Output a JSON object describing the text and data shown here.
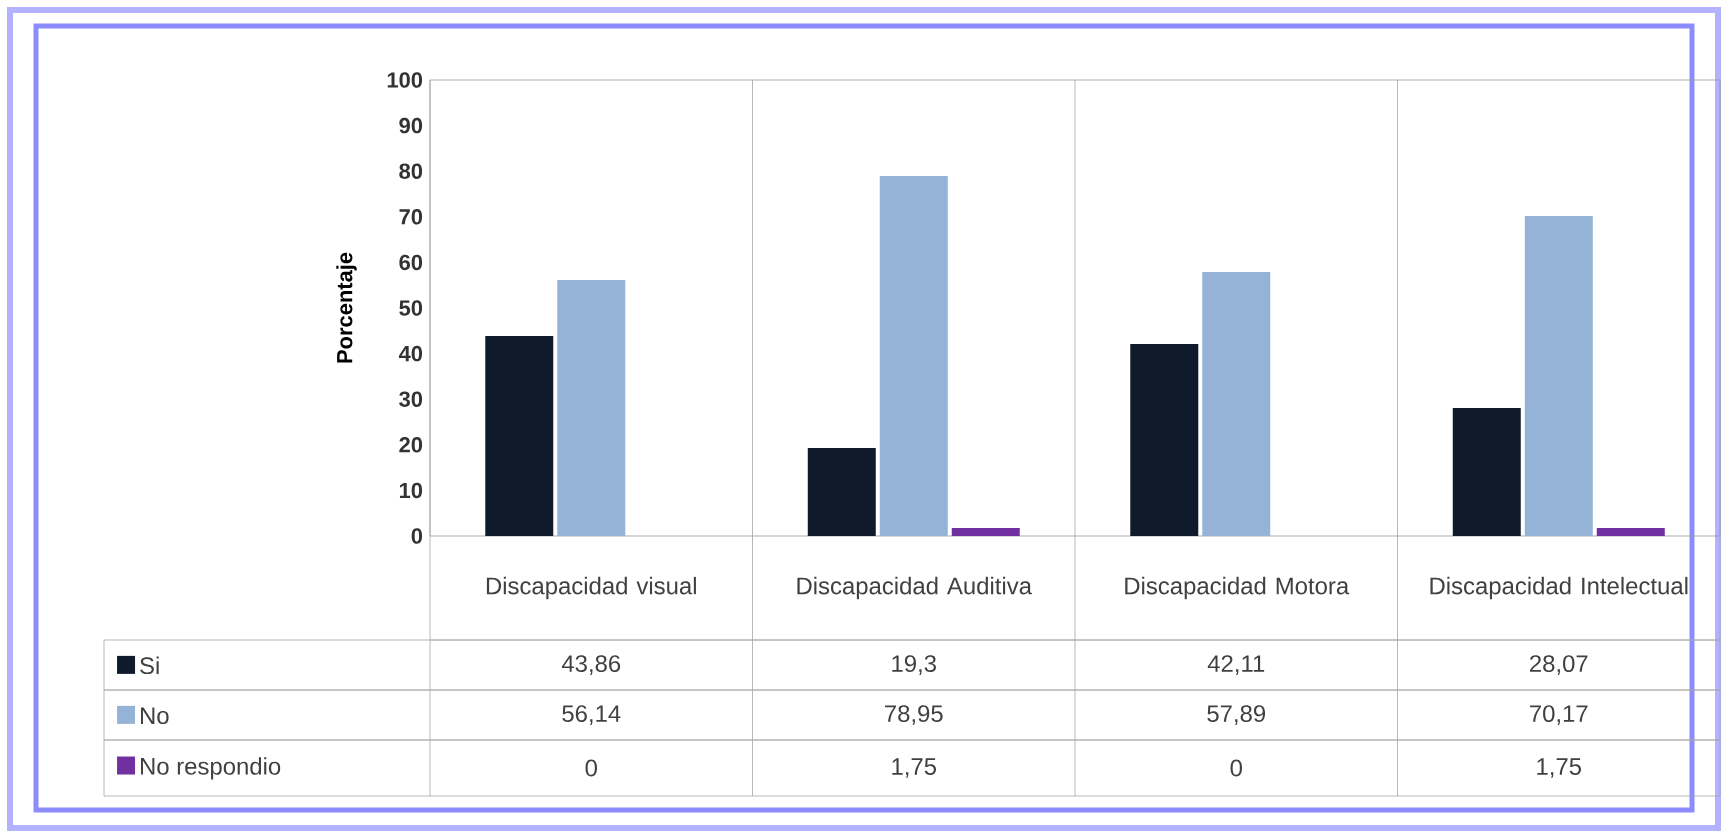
{
  "chart_data": {
    "type": "bar",
    "ylabel": "Porcentaje",
    "categories": [
      "Discapacidad visual",
      "Discapacidad Auditiva",
      "Discapacidad Motora",
      "Discapacidad Intelectual"
    ],
    "series": [
      {
        "name": "Si",
        "color": "#0f1a2b",
        "values": [
          43.86,
          19.3,
          42.11,
          28.07
        ],
        "value_labels": [
          "43,86",
          "19,3",
          "42,11",
          "28,07"
        ]
      },
      {
        "name": "No",
        "color": "#95b3d7",
        "values": [
          56.14,
          78.95,
          57.89,
          70.17
        ],
        "value_labels": [
          "56,14",
          "78,95",
          "57,89",
          "70,17"
        ]
      },
      {
        "name": "No respondio",
        "color": "#7030a0",
        "values": [
          0,
          1.75,
          0,
          1.75
        ],
        "value_labels": [
          "0",
          "1,75",
          "0",
          "1,75"
        ]
      }
    ],
    "ylim": [
      0,
      100
    ],
    "yticks": [
      0,
      10,
      20,
      30,
      40,
      50,
      60,
      70,
      80,
      90,
      100
    ],
    "legend": "bottom",
    "grid": false
  }
}
